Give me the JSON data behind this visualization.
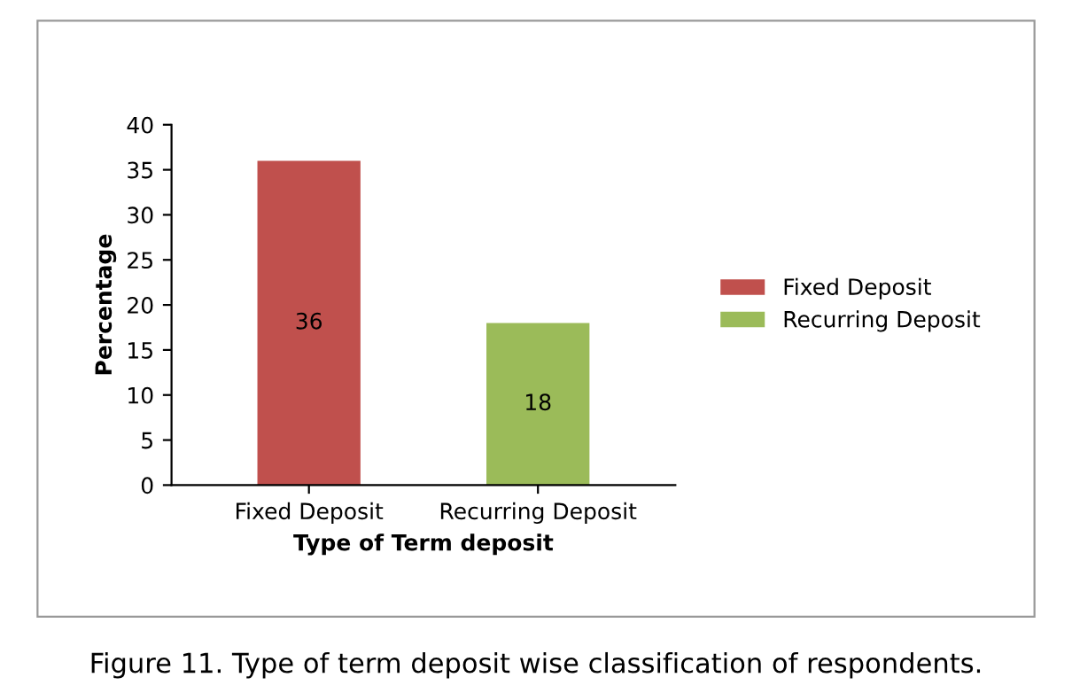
{
  "chart_data": {
    "type": "bar",
    "xlabel": "Type of Term deposit",
    "ylabel": "Percentage",
    "categories": [
      "Fixed Deposit",
      "Recurring Deposit"
    ],
    "series": [
      {
        "name": "Fixed Deposit",
        "color": "#c0504d",
        "values": [
          36,
          null
        ]
      },
      {
        "name": "Recurring Deposit",
        "color": "#9bbb59",
        "values": [
          null,
          18
        ]
      }
    ],
    "ylim": [
      0,
      40
    ],
    "yticks": [
      0,
      5,
      10,
      15,
      20,
      25,
      30,
      35,
      40
    ],
    "data_labels": true,
    "legend": "right",
    "grid": false,
    "annotations": [
      "Figure 11. Type of term deposit wise classification of respondents."
    ]
  }
}
